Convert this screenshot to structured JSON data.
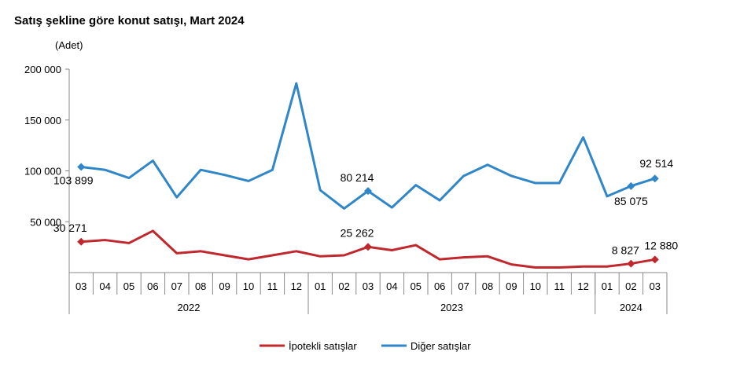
{
  "chart_data": {
    "type": "line",
    "title": "Satış şekline göre konut satışı, Mart 2024",
    "ylabel": "(Adet)",
    "ylim": [
      0,
      200000
    ],
    "yticks": [
      "200 000",
      "150 000",
      "100 000",
      "50 000"
    ],
    "ytick_values": [
      200000,
      150000,
      100000,
      50000
    ],
    "categories": [
      "03",
      "04",
      "05",
      "06",
      "07",
      "08",
      "09",
      "10",
      "11",
      "12",
      "01",
      "02",
      "03",
      "04",
      "05",
      "06",
      "07",
      "08",
      "09",
      "10",
      "11",
      "12",
      "01",
      "02",
      "03"
    ],
    "year_groups": [
      {
        "label": "2022",
        "count": 10
      },
      {
        "label": "2023",
        "count": 12
      },
      {
        "label": "2024",
        "count": 3
      }
    ],
    "legend_position": "bottom",
    "grid": false,
    "series": [
      {
        "name": "İpotekli satışlar",
        "color": "#C0282D",
        "values": [
          30271,
          32000,
          29000,
          41000,
          19000,
          21000,
          17000,
          13000,
          17000,
          21000,
          16000,
          17000,
          25262,
          22000,
          27000,
          13000,
          15000,
          16000,
          8000,
          5000,
          5000,
          6000,
          6000,
          8827,
          12880
        ],
        "labels": {
          "0": "30 271",
          "12": "25 262",
          "23": "8 827",
          "24": "12 880"
        }
      },
      {
        "name": "Diğer satışlar",
        "color": "#2F86C8",
        "values": [
          103899,
          101000,
          93000,
          110000,
          74000,
          101000,
          96000,
          90000,
          101000,
          186000,
          81000,
          63000,
          80214,
          64000,
          86000,
          71000,
          95000,
          106000,
          95000,
          88000,
          88000,
          133000,
          75000,
          85075,
          92514
        ],
        "labels": {
          "0": "103 899",
          "12": "80 214",
          "23": "85 075",
          "24": "92 514"
        }
      }
    ]
  }
}
